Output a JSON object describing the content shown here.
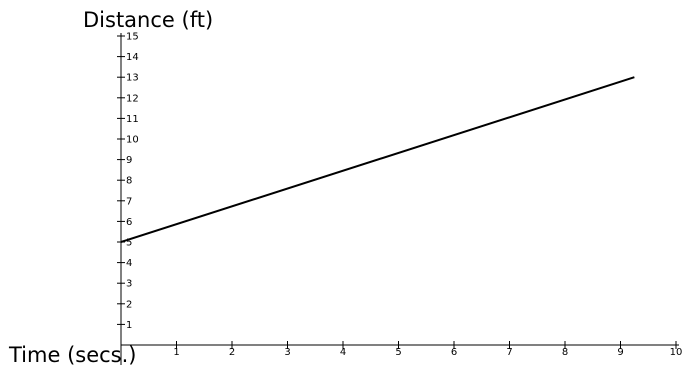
{
  "chart_data": {
    "type": "line",
    "title": "",
    "xlabel": "Time (secs.)",
    "ylabel": "Distance (ft)",
    "xlim": [
      0,
      10
    ],
    "ylim": [
      0,
      15
    ],
    "x_ticks": [
      "1",
      "2",
      "3",
      "4",
      "5",
      "6",
      "7",
      "8",
      "9",
      "10"
    ],
    "y_ticks": [
      "1",
      "2",
      "3",
      "4",
      "5",
      "6",
      "7",
      "8",
      "9",
      "10",
      "11",
      "12",
      "13",
      "14",
      "15"
    ],
    "grid": false,
    "legend": "none",
    "series": [
      {
        "x": [
          0,
          9.25
        ],
        "y": [
          5,
          13
        ],
        "color": "#000000"
      }
    ]
  }
}
